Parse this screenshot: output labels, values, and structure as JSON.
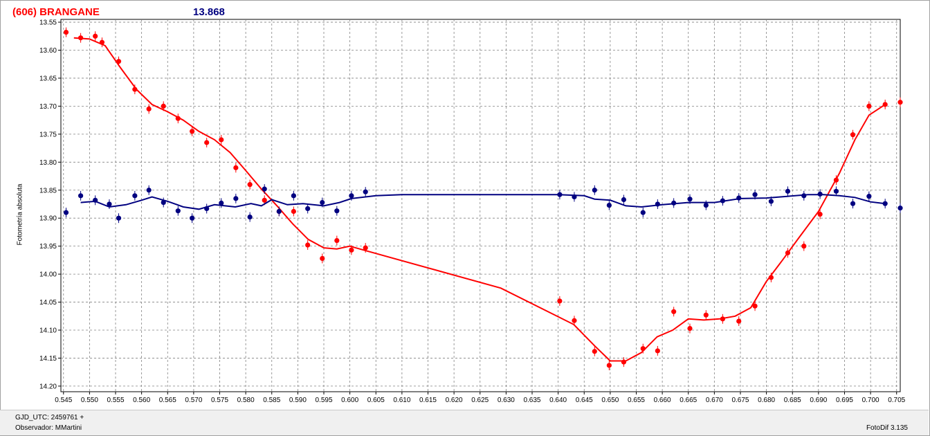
{
  "header": {
    "object_name": "(606) BRANGANE",
    "magnitude": "13.868"
  },
  "footer": {
    "gjd": "GJD_UTC: 2459761 +",
    "observer": "Observador: MMartini",
    "version": "FotoDif 3.135"
  },
  "colors": {
    "series_target": "#ff0000",
    "series_comparison": "#000080",
    "grid": "#808080",
    "background": "#ffffff"
  },
  "chart_data": {
    "type": "scatter",
    "title": "",
    "xlabel": "",
    "ylabel": "Fotometría absoluta",
    "xlim": [
      0.5445,
      0.7057
    ],
    "ylim": [
      13.545,
      14.21
    ],
    "y_inverted": true,
    "grid": true,
    "x_ticks": [
      "0.545",
      "0.550",
      "0.555",
      "0.560",
      "0.565",
      "0.570",
      "0.575",
      "0.580",
      "0.585",
      "0.590",
      "0.595",
      "0.600",
      "0.605",
      "0.610",
      "0.615",
      "0.620",
      "0.625",
      "0.630",
      "0.635",
      "0.640",
      "0.645",
      "0.650",
      "0.655",
      "0.660",
      "0.665",
      "0.670",
      "0.675",
      "0.680",
      "0.685",
      "0.690",
      "0.695",
      "0.700",
      "0.705"
    ],
    "y_ticks": [
      "13.55",
      "13.60",
      "13.65",
      "13.70",
      "13.75",
      "13.80",
      "13.85",
      "13.90",
      "13.95",
      "14.00",
      "14.05",
      "14.10",
      "14.15",
      "14.20"
    ],
    "series": [
      {
        "color": "#ff0000",
        "points": [
          [
            0.5455,
            13.568
          ],
          [
            0.5483,
            13.578
          ],
          [
            0.5511,
            13.575
          ],
          [
            0.5524,
            13.586
          ],
          [
            0.5556,
            13.62
          ],
          [
            0.5587,
            13.67
          ],
          [
            0.5614,
            13.705
          ],
          [
            0.5642,
            13.7
          ],
          [
            0.567,
            13.722
          ],
          [
            0.5697,
            13.745
          ],
          [
            0.5725,
            13.765
          ],
          [
            0.5753,
            13.76
          ],
          [
            0.5781,
            13.81
          ],
          [
            0.5808,
            13.84
          ],
          [
            0.5836,
            13.868
          ],
          [
            0.5864,
            13.888
          ],
          [
            0.5892,
            13.888
          ],
          [
            0.5919,
            13.948
          ],
          [
            0.5947,
            13.972
          ],
          [
            0.5975,
            13.94
          ],
          [
            0.6003,
            13.957
          ],
          [
            0.603,
            13.953
          ],
          [
            0.6403,
            14.048
          ],
          [
            0.6431,
            14.083
          ],
          [
            0.647,
            14.138
          ],
          [
            0.6498,
            14.163
          ],
          [
            0.6526,
            14.157
          ],
          [
            0.6563,
            14.133
          ],
          [
            0.6591,
            14.137
          ],
          [
            0.6622,
            14.067
          ],
          [
            0.6653,
            14.097
          ],
          [
            0.6684,
            14.073
          ],
          [
            0.6716,
            14.08
          ],
          [
            0.6747,
            14.084
          ],
          [
            0.6778,
            14.057
          ],
          [
            0.6809,
            14.006
          ],
          [
            0.6841,
            13.962
          ],
          [
            0.6872,
            13.95
          ],
          [
            0.6903,
            13.893
          ],
          [
            0.6934,
            13.832
          ],
          [
            0.6966,
            13.751
          ],
          [
            0.6997,
            13.7
          ],
          [
            0.7028,
            13.697
          ],
          [
            0.7057,
            13.693
          ]
        ],
        "fit": [
          [
            0.547,
            13.578
          ],
          [
            0.55,
            13.58
          ],
          [
            0.553,
            13.592
          ],
          [
            0.556,
            13.632
          ],
          [
            0.559,
            13.67
          ],
          [
            0.562,
            13.697
          ],
          [
            0.565,
            13.71
          ],
          [
            0.568,
            13.725
          ],
          [
            0.571,
            13.745
          ],
          [
            0.574,
            13.76
          ],
          [
            0.577,
            13.783
          ],
          [
            0.58,
            13.815
          ],
          [
            0.583,
            13.848
          ],
          [
            0.586,
            13.878
          ],
          [
            0.589,
            13.91
          ],
          [
            0.592,
            13.938
          ],
          [
            0.595,
            13.953
          ],
          [
            0.5975,
            13.955
          ],
          [
            0.6,
            13.95
          ],
          [
            0.603,
            13.958
          ],
          [
            0.629,
            14.025
          ],
          [
            0.643,
            14.09
          ],
          [
            0.647,
            14.128
          ],
          [
            0.65,
            14.155
          ],
          [
            0.653,
            14.155
          ],
          [
            0.656,
            14.14
          ],
          [
            0.659,
            14.112
          ],
          [
            0.662,
            14.1
          ],
          [
            0.665,
            14.08
          ],
          [
            0.668,
            14.082
          ],
          [
            0.671,
            14.08
          ],
          [
            0.674,
            14.075
          ],
          [
            0.677,
            14.06
          ],
          [
            0.68,
            14.013
          ],
          [
            0.683,
            13.976
          ],
          [
            0.686,
            13.938
          ],
          [
            0.69,
            13.888
          ],
          [
            0.694,
            13.82
          ],
          [
            0.697,
            13.76
          ],
          [
            0.6997,
            13.716
          ],
          [
            0.7028,
            13.697
          ]
        ]
      },
      {
        "color": "#000080",
        "points": [
          [
            0.5455,
            13.89
          ],
          [
            0.5483,
            13.86
          ],
          [
            0.5511,
            13.868
          ],
          [
            0.5538,
            13.875
          ],
          [
            0.5556,
            13.9
          ],
          [
            0.5587,
            13.86
          ],
          [
            0.5614,
            13.85
          ],
          [
            0.5642,
            13.872
          ],
          [
            0.567,
            13.887
          ],
          [
            0.5697,
            13.9
          ],
          [
            0.5725,
            13.883
          ],
          [
            0.5753,
            13.873
          ],
          [
            0.5781,
            13.865
          ],
          [
            0.5808,
            13.898
          ],
          [
            0.5836,
            13.848
          ],
          [
            0.5864,
            13.888
          ],
          [
            0.5892,
            13.86
          ],
          [
            0.5919,
            13.883
          ],
          [
            0.5947,
            13.872
          ],
          [
            0.5975,
            13.887
          ],
          [
            0.6003,
            13.86
          ],
          [
            0.603,
            13.853
          ],
          [
            0.6403,
            13.858
          ],
          [
            0.6431,
            13.862
          ],
          [
            0.647,
            13.85
          ],
          [
            0.6498,
            13.877
          ],
          [
            0.6526,
            13.867
          ],
          [
            0.6563,
            13.89
          ],
          [
            0.6591,
            13.875
          ],
          [
            0.6622,
            13.873
          ],
          [
            0.6653,
            13.866
          ],
          [
            0.6684,
            13.877
          ],
          [
            0.6716,
            13.869
          ],
          [
            0.6747,
            13.864
          ],
          [
            0.6778,
            13.858
          ],
          [
            0.6809,
            13.87
          ],
          [
            0.6841,
            13.852
          ],
          [
            0.6872,
            13.86
          ],
          [
            0.6903,
            13.857
          ],
          [
            0.6934,
            13.852
          ],
          [
            0.6966,
            13.874
          ],
          [
            0.6997,
            13.861
          ],
          [
            0.7028,
            13.874
          ],
          [
            0.7057,
            13.882
          ]
        ],
        "fit": [
          [
            0.5483,
            13.872
          ],
          [
            0.5511,
            13.87
          ],
          [
            0.5538,
            13.88
          ],
          [
            0.557,
            13.876
          ],
          [
            0.56,
            13.868
          ],
          [
            0.562,
            13.862
          ],
          [
            0.565,
            13.87
          ],
          [
            0.568,
            13.88
          ],
          [
            0.571,
            13.884
          ],
          [
            0.574,
            13.876
          ],
          [
            0.578,
            13.88
          ],
          [
            0.581,
            13.874
          ],
          [
            0.583,
            13.878
          ],
          [
            0.585,
            13.867
          ],
          [
            0.588,
            13.876
          ],
          [
            0.591,
            13.874
          ],
          [
            0.595,
            13.878
          ],
          [
            0.598,
            13.872
          ],
          [
            0.6003,
            13.865
          ],
          [
            0.605,
            13.86
          ],
          [
            0.61,
            13.858
          ],
          [
            0.62,
            13.858
          ],
          [
            0.63,
            13.858
          ],
          [
            0.64,
            13.858
          ],
          [
            0.645,
            13.86
          ],
          [
            0.647,
            13.866
          ],
          [
            0.65,
            13.868
          ],
          [
            0.653,
            13.878
          ],
          [
            0.656,
            13.88
          ],
          [
            0.66,
            13.876
          ],
          [
            0.665,
            13.872
          ],
          [
            0.67,
            13.872
          ],
          [
            0.675,
            13.865
          ],
          [
            0.68,
            13.864
          ],
          [
            0.684,
            13.861
          ],
          [
            0.688,
            13.858
          ],
          [
            0.691,
            13.858
          ],
          [
            0.694,
            13.86
          ],
          [
            0.697,
            13.863
          ],
          [
            0.7,
            13.871
          ],
          [
            0.7028,
            13.874
          ]
        ]
      }
    ]
  }
}
